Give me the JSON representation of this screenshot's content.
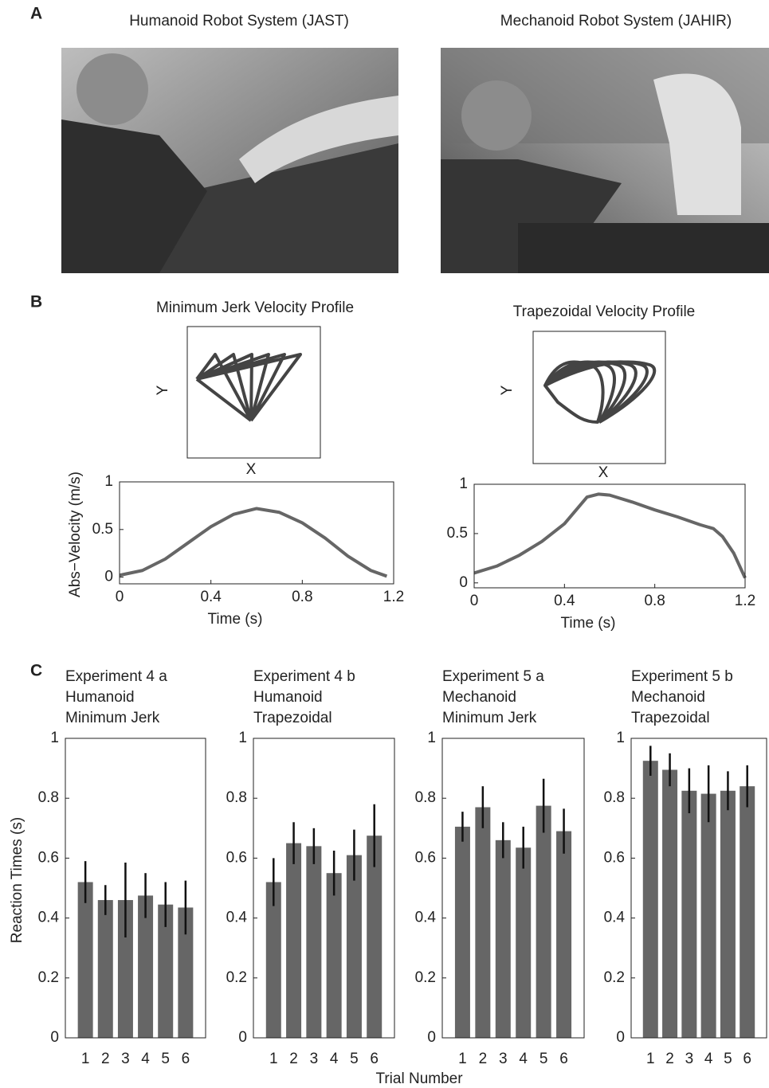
{
  "panel_labels": [
    "A",
    "B",
    "C"
  ],
  "photos": [
    {
      "title": "Humanoid Robot System (JAST)"
    },
    {
      "title": "Mechanoid Robot System (JAHIR)"
    }
  ],
  "trajectories": [
    {
      "title": "Minimum Jerk Velocity Profile",
      "xlabel": "X",
      "ylabel": "Y"
    },
    {
      "title": "Trapezoidal Velocity Profile",
      "xlabel": "X",
      "ylabel": "Y"
    }
  ],
  "panel_c_xlabel": "Trial Number",
  "chart_data": [
    {
      "type": "line",
      "xlabel": "Time (s)",
      "ylabel": "Abs−Velocity (m/s)",
      "color": "#666666",
      "x": [
        0,
        0.1,
        0.2,
        0.3,
        0.4,
        0.5,
        0.6,
        0.7,
        0.8,
        0.9,
        1.0,
        1.1,
        1.17
      ],
      "values": [
        0.02,
        0.07,
        0.19,
        0.36,
        0.53,
        0.66,
        0.72,
        0.68,
        0.57,
        0.41,
        0.22,
        0.07,
        0.01
      ],
      "xlim": [
        0,
        1.2
      ],
      "ylim": [
        -0.07,
        1
      ],
      "xticks": [
        0,
        0.4,
        0.8,
        1.2
      ],
      "yticks": [
        0,
        0.5,
        1
      ]
    },
    {
      "type": "line",
      "xlabel": "Time (s)",
      "color": "#666666",
      "x": [
        0,
        0.1,
        0.2,
        0.3,
        0.4,
        0.5,
        0.55,
        0.6,
        0.7,
        0.8,
        0.9,
        1.0,
        1.06,
        1.1,
        1.15,
        1.2
      ],
      "values": [
        0.1,
        0.17,
        0.28,
        0.42,
        0.6,
        0.87,
        0.9,
        0.89,
        0.82,
        0.74,
        0.67,
        0.59,
        0.55,
        0.47,
        0.3,
        0.05
      ],
      "xlim": [
        0,
        1.2
      ],
      "ylim": [
        -0.05,
        1
      ],
      "xticks": [
        0,
        0.4,
        0.8,
        1.2
      ],
      "yticks": [
        0,
        0.5,
        1
      ]
    },
    {
      "type": "bar",
      "title": [
        "Experiment 4 a",
        "Humanoid",
        "Minimum Jerk"
      ],
      "ylabel": "Reaction Times (s)",
      "color": "#666666",
      "categories": [
        "1",
        "2",
        "3",
        "4",
        "5",
        "6"
      ],
      "values": [
        0.52,
        0.46,
        0.46,
        0.475,
        0.445,
        0.435
      ],
      "errors": [
        0.07,
        0.05,
        0.125,
        0.075,
        0.075,
        0.09
      ],
      "ylim": [
        0,
        1
      ],
      "yticks": [
        0,
        0.2,
        0.4,
        0.6,
        0.8,
        1
      ]
    },
    {
      "type": "bar",
      "title": [
        "Experiment 4 b",
        "Humanoid",
        "Trapezoidal"
      ],
      "color": "#666666",
      "categories": [
        "1",
        "2",
        "3",
        "4",
        "5",
        "6"
      ],
      "values": [
        0.52,
        0.65,
        0.64,
        0.55,
        0.61,
        0.675
      ],
      "errors": [
        0.08,
        0.07,
        0.06,
        0.075,
        0.085,
        0.105
      ],
      "ylim": [
        0,
        1
      ],
      "yticks": [
        0,
        0.2,
        0.4,
        0.6,
        0.8,
        1
      ]
    },
    {
      "type": "bar",
      "title": [
        "Experiment 5 a",
        "Mechanoid",
        "Minimum Jerk"
      ],
      "color": "#666666",
      "categories": [
        "1",
        "2",
        "3",
        "4",
        "5",
        "6"
      ],
      "values": [
        0.705,
        0.77,
        0.66,
        0.635,
        0.775,
        0.69
      ],
      "errors": [
        0.05,
        0.07,
        0.06,
        0.07,
        0.09,
        0.075
      ],
      "ylim": [
        0,
        1
      ],
      "yticks": [
        0,
        0.2,
        0.4,
        0.6,
        0.8,
        1
      ]
    },
    {
      "type": "bar",
      "title": [
        "Experiment 5 b",
        "Mechanoid",
        "Trapezoidal"
      ],
      "color": "#666666",
      "categories": [
        "1",
        "2",
        "3",
        "4",
        "5",
        "6"
      ],
      "values": [
        0.925,
        0.895,
        0.825,
        0.815,
        0.825,
        0.84
      ],
      "errors": [
        0.05,
        0.055,
        0.075,
        0.095,
        0.065,
        0.07
      ],
      "ylim": [
        0,
        1
      ],
      "yticks": [
        0,
        0.2,
        0.4,
        0.6,
        0.8,
        1
      ]
    }
  ]
}
